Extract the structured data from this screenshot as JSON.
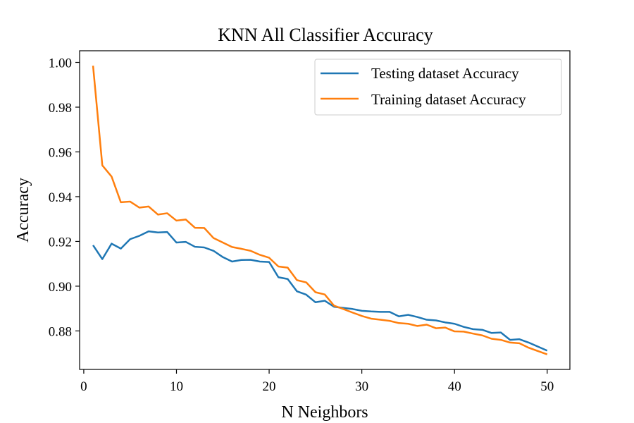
{
  "chart_data": {
    "type": "line",
    "title": "KNN All Classifier Accuracy",
    "xlabel": "N Neighbors",
    "ylabel": "Accuracy",
    "xlim": [
      -0.45,
      52.45
    ],
    "ylim": [
      0.8628,
      1.0052
    ],
    "xticks": [
      0,
      10,
      20,
      30,
      40,
      50
    ],
    "yticks": [
      0.88,
      0.9,
      0.92,
      0.94,
      0.96,
      0.98,
      1.0
    ],
    "grid": false,
    "legend_position": "upper right",
    "x": [
      1,
      2,
      3,
      4,
      5,
      6,
      7,
      8,
      9,
      10,
      11,
      12,
      13,
      14,
      15,
      16,
      17,
      18,
      19,
      20,
      21,
      22,
      23,
      24,
      25,
      26,
      27,
      28,
      29,
      30,
      31,
      32,
      33,
      34,
      35,
      36,
      37,
      38,
      39,
      40,
      41,
      42,
      43,
      44,
      45,
      46,
      47,
      48,
      49,
      50
    ],
    "series": [
      {
        "name": "Testing dataset Accuracy",
        "color": "#1f77b4",
        "values": [
          0.9183,
          0.9121,
          0.919,
          0.9168,
          0.921,
          0.9225,
          0.9245,
          0.924,
          0.9242,
          0.9195,
          0.9198,
          0.9176,
          0.9173,
          0.9158,
          0.913,
          0.911,
          0.9117,
          0.9118,
          0.911,
          0.9108,
          0.904,
          0.9032,
          0.8977,
          0.8962,
          0.8928,
          0.8935,
          0.8908,
          0.8903,
          0.8898,
          0.889,
          0.8887,
          0.8885,
          0.8885,
          0.8865,
          0.8872,
          0.8862,
          0.885,
          0.8847,
          0.8838,
          0.8832,
          0.8818,
          0.8808,
          0.8805,
          0.8791,
          0.8793,
          0.876,
          0.8763,
          0.8748,
          0.873,
          0.8712
        ]
      },
      {
        "name": "Training dataset Accuracy",
        "color": "#ff7f0e",
        "values": [
          0.9985,
          0.954,
          0.949,
          0.9375,
          0.9378,
          0.9351,
          0.9356,
          0.932,
          0.9326,
          0.9293,
          0.9298,
          0.9261,
          0.926,
          0.9215,
          0.9195,
          0.9175,
          0.9167,
          0.9158,
          0.914,
          0.9127,
          0.9088,
          0.9083,
          0.9027,
          0.9017,
          0.8973,
          0.8963,
          0.8913,
          0.8898,
          0.8882,
          0.8867,
          0.8855,
          0.885,
          0.8845,
          0.8835,
          0.8832,
          0.8822,
          0.8828,
          0.8812,
          0.8815,
          0.8798,
          0.8797,
          0.8788,
          0.878,
          0.8765,
          0.876,
          0.8748,
          0.8745,
          0.8725,
          0.871,
          0.8695
        ]
      }
    ]
  }
}
